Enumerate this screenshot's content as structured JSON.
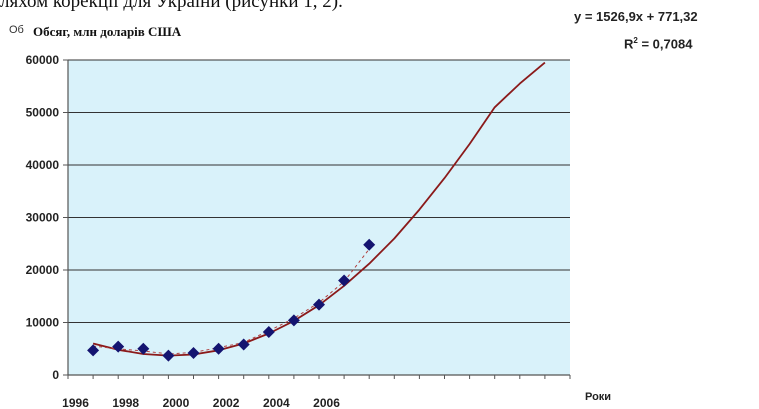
{
  "page": {
    "top_text": "ляхом корекції для України (рисунки 1, 2)."
  },
  "chart_data": {
    "type": "scatter",
    "title": "",
    "ylabel_prefix": "Об",
    "ylabel": "Обсяг, млн доларів США",
    "xlabel": "Роки",
    "x_tick_labels": [
      "1996",
      "1998",
      "2000",
      "2002",
      "2004",
      "2006"
    ],
    "ylim": [
      0,
      60000
    ],
    "y_ticks": [
      0,
      10000,
      20000,
      30000,
      40000,
      50000,
      60000
    ],
    "x_categories": 20,
    "grid": true,
    "plot_background": "#d9f2fa",
    "series": [
      {
        "kind": "points",
        "marker": "diamond",
        "color": "#141470",
        "x": [
          1,
          2,
          3,
          4,
          5,
          6,
          7,
          8,
          9,
          10,
          11,
          12
        ],
        "y": [
          4700,
          5400,
          5000,
          3700,
          4200,
          5000,
          5800,
          8200,
          10400,
          13400,
          18000,
          24800
        ]
      },
      {
        "kind": "polynomial-trend",
        "color": "#8b1a1a",
        "x": [
          1,
          2,
          3,
          4,
          5,
          6,
          7,
          8,
          9,
          10,
          11,
          12,
          13,
          14,
          15,
          16,
          17,
          18,
          19
        ],
        "y": [
          6000,
          4800,
          4000,
          3700,
          3900,
          4700,
          6000,
          7900,
          10300,
          13300,
          17000,
          21200,
          26000,
          31500,
          37500,
          44000,
          51000,
          55500,
          59500
        ]
      },
      {
        "kind": "dashed-trend",
        "color": "#b04040",
        "x": [
          1,
          2,
          3,
          4,
          5,
          6,
          7,
          8,
          9,
          10,
          11,
          12
        ],
        "y": [
          5500,
          5000,
          4600,
          4000,
          4300,
          5200,
          6200,
          8400,
          10800,
          13800,
          17800,
          24000
        ]
      }
    ],
    "annotations": {
      "equation": "y = 1526,9x + 771,32",
      "r2_label": "R",
      "r2_sup": "2",
      "r2_value": " = 0,7084"
    },
    "colors": {
      "axis": "#555555",
      "grid": "#333333"
    }
  }
}
